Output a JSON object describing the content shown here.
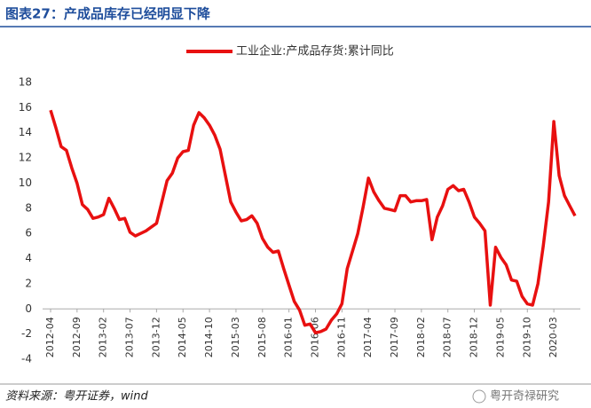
{
  "chart_data": {
    "type": "line",
    "title": "图表27：产成品库存已经明显下降",
    "source": "资料来源：粤开证券，wind",
    "watermark": "粤开奇禄研究",
    "categories": [
      "2012-04",
      null,
      null,
      null,
      null,
      "2012-09",
      null,
      null,
      null,
      null,
      "2013-02",
      null,
      null,
      null,
      null,
      "2013-07",
      null,
      null,
      null,
      null,
      "2013-12",
      null,
      null,
      null,
      null,
      "2014-05",
      null,
      null,
      null,
      null,
      "2014-10",
      null,
      null,
      null,
      null,
      "2015-03",
      null,
      null,
      null,
      null,
      "2015-08",
      null,
      null,
      null,
      null,
      "2016-01",
      null,
      null,
      null,
      null,
      "2016-06",
      null,
      null,
      null,
      null,
      "2016-11",
      null,
      null,
      null,
      null,
      "2017-04",
      null,
      null,
      null,
      null,
      "2017-09",
      null,
      null,
      null,
      null,
      "2018-02",
      null,
      null,
      null,
      null,
      "2018-07",
      null,
      null,
      null,
      null,
      "2018-12",
      null,
      null,
      null,
      null,
      "2019-05",
      null,
      null,
      null,
      null,
      "2019-10",
      null,
      null,
      null,
      null,
      "2020-03",
      null,
      null,
      null,
      null
    ],
    "series": [
      {
        "name": "工业企业:产成品存货:累计同比",
        "color": "#e81010",
        "values": [
          15.8,
          14.4,
          12.9,
          12.6,
          11.2,
          10.0,
          8.3,
          7.9,
          7.2,
          7.3,
          7.5,
          8.8,
          8.0,
          7.1,
          7.2,
          6.1,
          5.8,
          6.0,
          6.2,
          6.5,
          6.8,
          8.5,
          10.2,
          10.8,
          12.0,
          12.5,
          12.6,
          14.6,
          15.6,
          15.2,
          14.6,
          13.8,
          12.7,
          10.6,
          8.5,
          7.7,
          7.0,
          7.1,
          7.4,
          6.8,
          5.6,
          4.9,
          4.5,
          4.6,
          3.2,
          1.9,
          0.6,
          -0.1,
          -1.3,
          -1.2,
          -1.9,
          -1.8,
          -1.6,
          -0.9,
          -0.4,
          0.4,
          3.2,
          4.6,
          6.0,
          8.1,
          10.4,
          9.3,
          8.6,
          8.0,
          7.9,
          7.8,
          9.0,
          9.0,
          8.5,
          8.6,
          8.6,
          8.7,
          5.5,
          7.3,
          8.2,
          9.5,
          9.8,
          9.4,
          9.5,
          8.5,
          7.3,
          6.8,
          6.2,
          0.3,
          4.9,
          4.1,
          3.5,
          2.3,
          2.2,
          1.0,
          0.4,
          0.3,
          2.0,
          5.0,
          8.5,
          14.9,
          10.6,
          9.0,
          8.2,
          7.4
        ]
      }
    ],
    "ylim": [
      -4,
      18
    ],
    "yticks": [
      -4,
      -2,
      0,
      2,
      4,
      6,
      8,
      10,
      12,
      14,
      16,
      18
    ],
    "legend": "top"
  }
}
